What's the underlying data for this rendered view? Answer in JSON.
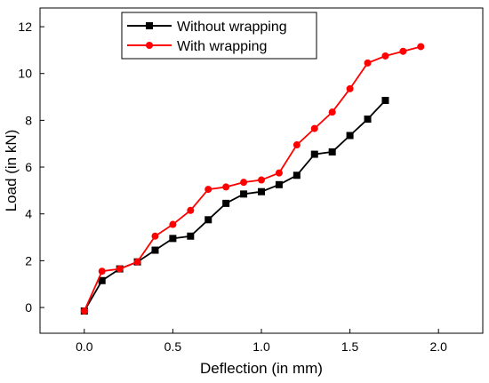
{
  "chart_data": {
    "type": "line",
    "title": "",
    "xlabel": "Deflection (in mm)",
    "ylabel": "Load (in kN)",
    "xlim": [
      -0.25,
      2.25
    ],
    "ylim": [
      -1.1,
      12.8
    ],
    "xticks": [
      {
        "value": 0.0,
        "label": "0.0"
      },
      {
        "value": 0.5,
        "label": "0.5"
      },
      {
        "value": 1.0,
        "label": "1.0"
      },
      {
        "value": 1.5,
        "label": "1.5"
      },
      {
        "value": 2.0,
        "label": "2.0"
      }
    ],
    "yticks": [
      {
        "value": 0,
        "label": "0"
      },
      {
        "value": 2,
        "label": "2"
      },
      {
        "value": 4,
        "label": "4"
      },
      {
        "value": 6,
        "label": "6"
      },
      {
        "value": 8,
        "label": "8"
      },
      {
        "value": 10,
        "label": "10"
      },
      {
        "value": 12,
        "label": "12"
      }
    ],
    "grid": false,
    "legend": "top-center",
    "series": [
      {
        "name": "Without wrapping",
        "color": "#000000",
        "marker": "square",
        "x": [
          0.0,
          0.1,
          0.2,
          0.3,
          0.4,
          0.5,
          0.6,
          0.7,
          0.8,
          0.9,
          1.0,
          1.1,
          1.2,
          1.3,
          1.4,
          1.5,
          1.6,
          1.7
        ],
        "y": [
          -0.15,
          1.15,
          1.65,
          1.95,
          2.45,
          2.95,
          3.05,
          3.75,
          4.45,
          4.85,
          4.95,
          5.25,
          5.65,
          6.55,
          6.65,
          7.35,
          8.05,
          8.85
        ]
      },
      {
        "name": "With wrapping",
        "color": "#ff0000",
        "marker": "circle",
        "x": [
          0.0,
          0.1,
          0.2,
          0.3,
          0.4,
          0.5,
          0.6,
          0.7,
          0.8,
          0.9,
          1.0,
          1.1,
          1.2,
          1.3,
          1.4,
          1.5,
          1.6,
          1.7,
          1.8,
          1.9
        ],
        "y": [
          -0.15,
          1.55,
          1.65,
          1.95,
          3.05,
          3.55,
          4.15,
          5.05,
          5.15,
          5.35,
          5.45,
          5.75,
          6.95,
          7.65,
          8.35,
          9.35,
          10.45,
          10.75,
          10.95,
          11.15
        ]
      }
    ]
  }
}
